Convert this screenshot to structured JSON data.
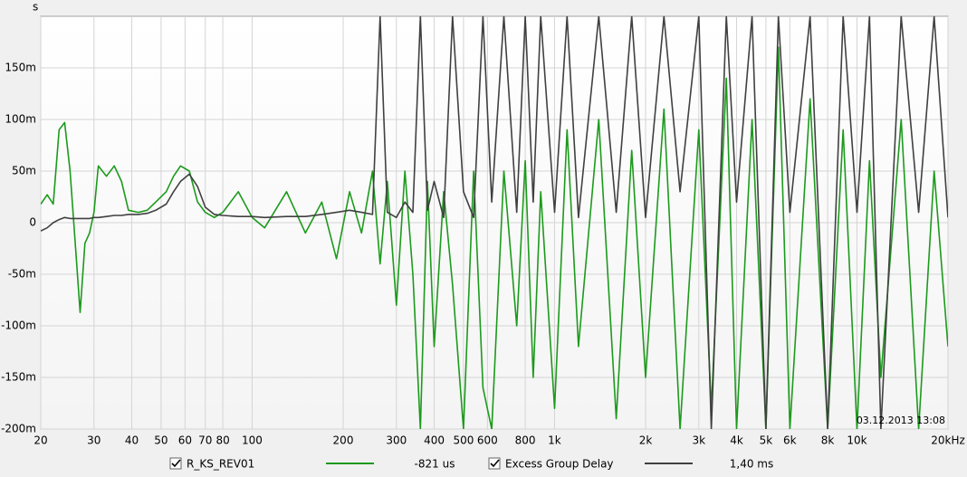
{
  "chart_data": {
    "type": "line",
    "y_label": "s",
    "timestamp": "03.12.2013 13:08",
    "x": [
      20,
      21,
      22,
      23,
      24,
      25,
      26,
      27,
      28,
      29,
      30,
      31,
      33,
      35,
      37,
      39,
      42,
      45,
      48,
      52,
      55,
      58,
      62,
      66,
      70,
      75,
      80,
      90,
      100,
      110,
      130,
      150,
      170,
      190,
      210,
      230,
      250,
      265,
      280,
      300,
      320,
      340,
      360,
      380,
      400,
      430,
      460,
      500,
      540,
      580,
      620,
      680,
      750,
      800,
      850,
      900,
      1000,
      1100,
      1200,
      1400,
      1600,
      1800,
      2000,
      2300,
      2600,
      3000,
      3300,
      3700,
      4000,
      4500,
      5000,
      5500,
      6000,
      7000,
      8000,
      9000,
      10000,
      11000,
      12000,
      14000,
      16000,
      18000,
      20000
    ],
    "series": [
      {
        "name": "R_KS_REV01",
        "legend_value": "-821 us",
        "color": "#1c9a1c",
        "values": [
          0.018,
          0.027,
          0.018,
          0.09,
          0.097,
          0.05,
          -0.02,
          -0.087,
          -0.02,
          -0.01,
          0.01,
          0.055,
          0.045,
          0.055,
          0.04,
          0.012,
          0.01,
          0.012,
          0.02,
          0.03,
          0.045,
          0.055,
          0.05,
          0.02,
          0.01,
          0.005,
          0.01,
          0.03,
          0.005,
          -0.005,
          0.03,
          -0.01,
          0.02,
          -0.035,
          0.03,
          -0.01,
          0.05,
          -0.04,
          0.04,
          -0.08,
          0.05,
          -0.05,
          -0.2,
          0.04,
          -0.12,
          0.03,
          -0.06,
          -0.2,
          0.05,
          -0.16,
          -0.2,
          0.05,
          -0.1,
          0.06,
          -0.15,
          0.03,
          -0.18,
          0.09,
          -0.12,
          0.1,
          -0.19,
          0.07,
          -0.15,
          0.11,
          -0.2,
          0.09,
          -0.18,
          0.14,
          -0.2,
          0.1,
          -0.2,
          0.17,
          -0.2,
          0.12,
          -0.2,
          0.09,
          -0.2,
          0.06,
          -0.15,
          0.1,
          -0.2,
          0.05,
          -0.12
        ]
      },
      {
        "name": "Excess Group Delay",
        "legend_value": "1,40 ms",
        "color": "#404040",
        "values": [
          -0.008,
          -0.005,
          0,
          0.003,
          0.005,
          0.004,
          0.004,
          0.004,
          0.004,
          0.004,
          0.005,
          0.005,
          0.006,
          0.007,
          0.007,
          0.008,
          0.008,
          0.009,
          0.012,
          0.018,
          0.03,
          0.04,
          0.047,
          0.035,
          0.015,
          0.008,
          0.007,
          0.006,
          0.006,
          0.005,
          0.006,
          0.006,
          0.008,
          0.01,
          0.012,
          0.01,
          0.008,
          0.2,
          0.01,
          0.005,
          0.02,
          0.01,
          0.2,
          0.012,
          0.04,
          0.005,
          0.2,
          0.03,
          0.005,
          0.2,
          0.02,
          0.2,
          0.01,
          0.2,
          0.02,
          0.2,
          0.01,
          0.2,
          0.005,
          0.2,
          0.01,
          0.2,
          0.005,
          0.2,
          0.03,
          0.2,
          -0.2,
          0.2,
          0.02,
          0.2,
          -0.2,
          0.2,
          0.01,
          0.2,
          -0.2,
          0.2,
          0.01,
          0.2,
          -0.2,
          0.2,
          0.01,
          0.2,
          0.005
        ]
      }
    ],
    "xlim": [
      20,
      20000
    ],
    "xscale": "log",
    "xticks": [
      20,
      30,
      40,
      50,
      60,
      70,
      80,
      100,
      200,
      300,
      400,
      500,
      600,
      800,
      {
        "value": 1000,
        "label": "1k"
      },
      {
        "value": 2000,
        "label": "2k"
      },
      {
        "value": 3000,
        "label": "3k"
      },
      {
        "value": 4000,
        "label": "4k"
      },
      {
        "value": 5000,
        "label": "5k"
      },
      {
        "value": 6000,
        "label": "6k"
      },
      {
        "value": 8000,
        "label": "8k"
      },
      {
        "value": 10000,
        "label": "10k"
      },
      {
        "value": 20000,
        "label": "20kHz"
      }
    ],
    "ylim": [
      -0.2,
      0.2
    ],
    "yticks": [
      {
        "value": -0.2,
        "label": "-200m"
      },
      {
        "value": -0.15,
        "label": "-150m"
      },
      {
        "value": -0.1,
        "label": "-100m"
      },
      {
        "value": -0.05,
        "label": "-50m"
      },
      0,
      {
        "value": 0.05,
        "label": "50m"
      },
      {
        "value": 0.1,
        "label": "100m"
      },
      {
        "value": 0.15,
        "label": "150m"
      }
    ],
    "grid": true
  }
}
